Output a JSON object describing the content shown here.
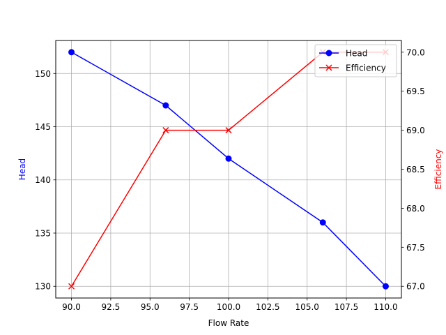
{
  "chart_data": {
    "type": "line",
    "x": [
      90,
      96,
      100,
      106,
      110
    ],
    "xlabel": "Flow Rate",
    "xlim": [
      89,
      111
    ],
    "xticks": [
      "90.0",
      "92.5",
      "95.0",
      "97.5",
      "100.0",
      "102.5",
      "105.0",
      "107.5",
      "110.0"
    ],
    "xtick_values": [
      90,
      92.5,
      95,
      97.5,
      100,
      102.5,
      105,
      107.5,
      110
    ],
    "grid": true,
    "legend_position": "top-right",
    "series": [
      {
        "name": "Head",
        "axis": "left",
        "values": [
          152,
          147,
          142,
          136,
          130
        ],
        "color": "#0000ff",
        "marker": "circle"
      },
      {
        "name": "Efficiency",
        "axis": "right",
        "values": [
          67.0,
          69.0,
          69.0,
          70.0,
          70.0
        ],
        "color": "#ff0000",
        "marker": "x"
      }
    ],
    "ylabel_left": "Head",
    "ylim_left": [
      128.9,
      153.1
    ],
    "yticks_left": [
      "130",
      "135",
      "140",
      "145",
      "150"
    ],
    "ytick_values_left": [
      130,
      135,
      140,
      145,
      150
    ],
    "ylabel_right": "Efficiency",
    "ylim_right": [
      66.85,
      70.15
    ],
    "yticks_right": [
      "67.0",
      "67.5",
      "68.0",
      "68.5",
      "69.0",
      "69.5",
      "70.0"
    ],
    "ytick_values_right": [
      67,
      67.5,
      68,
      68.5,
      69,
      69.5,
      70
    ]
  }
}
